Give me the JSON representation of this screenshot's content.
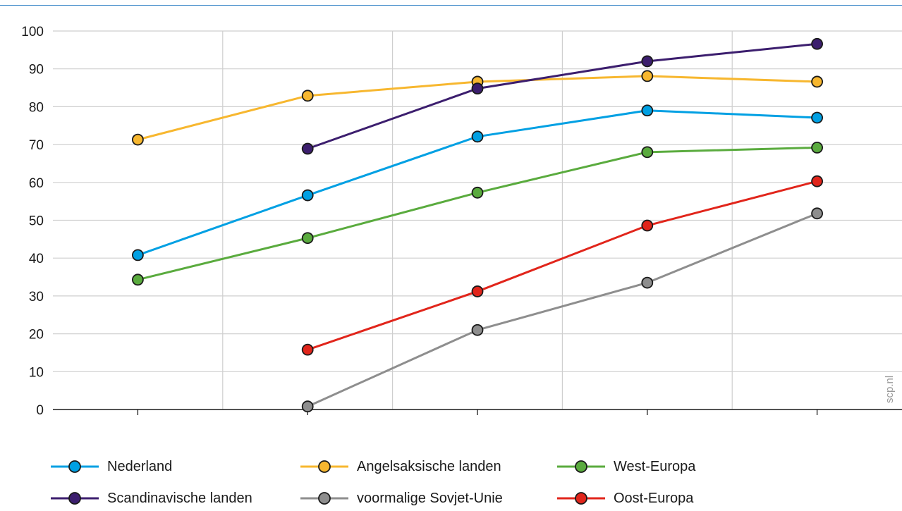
{
  "chart_data": {
    "type": "line",
    "x": [
      "-",
      "-",
      "-",
      "-",
      "-"
    ],
    "ylim": [
      0,
      100
    ],
    "yticks": [
      0,
      10,
      20,
      30,
      40,
      50,
      60,
      70,
      80,
      90,
      100
    ],
    "grid": true,
    "legend_position": "bottom",
    "watermark": "scp.nl",
    "series": [
      {
        "name": "Nederland",
        "color": "#00a0e3",
        "values": [
          40.8,
          56.6,
          72.1,
          79.0,
          77.1
        ]
      },
      {
        "name": "Angelsaksische landen",
        "color": "#f7b72f",
        "values": [
          71.3,
          82.9,
          86.6,
          88.1,
          86.6
        ]
      },
      {
        "name": "West-Europa",
        "color": "#5aab3e",
        "values": [
          34.3,
          45.3,
          57.3,
          68.0,
          69.2
        ]
      },
      {
        "name": "Scandinavische landen",
        "color": "#3c1e6e",
        "values": [
          null,
          68.9,
          84.8,
          92.0,
          96.6
        ]
      },
      {
        "name": "voormalige Sovjet-Unie",
        "color": "#8e8e8e",
        "values": [
          null,
          0.8,
          21.0,
          33.5,
          51.8
        ]
      },
      {
        "name": "Oost-Europa",
        "color": "#e1251b",
        "values": [
          null,
          15.8,
          31.2,
          48.6,
          60.3
        ]
      }
    ]
  }
}
